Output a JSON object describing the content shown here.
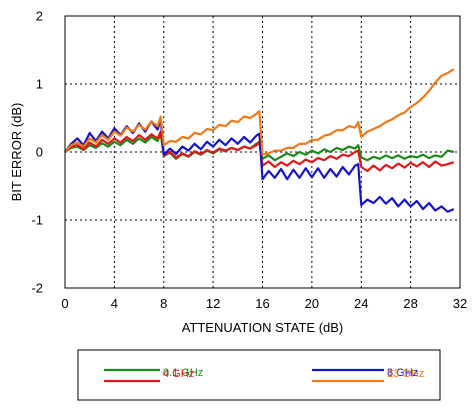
{
  "chart_data": {
    "type": "line",
    "title": "",
    "xlabel": "ATTENUATION STATE (dB)",
    "ylabel": "BIT ERROR (dB)",
    "xlim": [
      0,
      32
    ],
    "ylim": [
      -2,
      2
    ],
    "x_ticks": [
      0,
      4,
      8,
      12,
      16,
      20,
      24,
      28,
      32
    ],
    "y_ticks": [
      -2,
      -1,
      0,
      1,
      2
    ],
    "x_tick_labels": [
      "0",
      "4",
      "8",
      "12",
      "16",
      "20",
      "24",
      "28",
      "32"
    ],
    "y_tick_labels": [
      "-2",
      "-1",
      "0",
      "1",
      "2"
    ],
    "grid": "dotted",
    "legend_position": "bottom",
    "x": [
      0,
      0.5,
      1,
      1.5,
      2,
      2.5,
      3,
      3.5,
      4,
      4.5,
      5,
      5.5,
      6,
      6.5,
      7,
      7.5,
      7.75,
      8,
      8.5,
      9,
      9.5,
      10,
      10.5,
      11,
      11.5,
      12,
      12.5,
      13,
      13.5,
      14,
      14.5,
      15,
      15.5,
      15.75,
      16,
      16.5,
      17,
      17.5,
      18,
      18.5,
      19,
      19.5,
      20,
      20.5,
      21,
      21.5,
      22,
      22.5,
      23,
      23.5,
      23.75,
      24,
      24.5,
      25,
      25.5,
      26,
      26.5,
      27,
      27.5,
      28,
      28.5,
      29,
      29.5,
      30,
      30.5,
      31,
      31.5
    ],
    "series": [
      {
        "name": "0.1 GHz",
        "color": "#1a8a1a",
        "values": [
          0,
          0.06,
          0.08,
          0.03,
          0.1,
          0.06,
          0.13,
          0.08,
          0.15,
          0.1,
          0.18,
          0.12,
          0.2,
          0.14,
          0.22,
          0.16,
          0.27,
          -0.06,
          -0.01,
          -0.1,
          -0.03,
          -0.07,
          0,
          -0.04,
          0.02,
          -0.02,
          0.04,
          0.01,
          0.06,
          0.03,
          0.08,
          0.05,
          0.12,
          0.15,
          -0.1,
          -0.05,
          -0.12,
          -0.07,
          -0.02,
          -0.06,
          0,
          -0.04,
          0.02,
          -0.02,
          0.04,
          0,
          0.06,
          0.03,
          0.08,
          0.05,
          0.1,
          -0.08,
          -0.12,
          -0.07,
          -0.1,
          -0.05,
          -0.09,
          -0.05,
          -0.1,
          -0.06,
          -0.08,
          -0.04,
          -0.09,
          -0.05,
          -0.07,
          0.02,
          0
        ]
      },
      {
        "name": "4 GHz",
        "color": "#e01818",
        "values": [
          0,
          0.08,
          0.1,
          0.04,
          0.14,
          0.08,
          0.18,
          0.12,
          0.2,
          0.14,
          0.22,
          0.16,
          0.25,
          0.18,
          0.26,
          0.2,
          0.3,
          -0.05,
          0,
          -0.08,
          -0.02,
          -0.06,
          0.01,
          -0.03,
          0.03,
          -0.01,
          0.05,
          0.02,
          0.06,
          0.03,
          0.08,
          0.05,
          0.1,
          0.14,
          -0.2,
          -0.14,
          -0.22,
          -0.15,
          -0.2,
          -0.13,
          -0.18,
          -0.11,
          -0.15,
          -0.09,
          -0.12,
          -0.06,
          -0.1,
          -0.04,
          -0.06,
          0,
          0.02,
          -0.22,
          -0.28,
          -0.2,
          -0.27,
          -0.19,
          -0.24,
          -0.17,
          -0.23,
          -0.16,
          -0.21,
          -0.15,
          -0.22,
          -0.14,
          -0.2,
          -0.18,
          -0.15
        ]
      },
      {
        "name": "8 GHz",
        "color": "#1414c8",
        "values": [
          0,
          0.12,
          0.2,
          0.1,
          0.28,
          0.16,
          0.3,
          0.2,
          0.35,
          0.25,
          0.38,
          0.28,
          0.42,
          0.3,
          0.45,
          0.33,
          0.48,
          -0.04,
          0.05,
          -0.03,
          0.08,
          0.02,
          0.12,
          0.04,
          0.15,
          0.08,
          0.18,
          0.1,
          0.2,
          0.12,
          0.22,
          0.14,
          0.24,
          0.27,
          -0.4,
          -0.28,
          -0.38,
          -0.25,
          -0.4,
          -0.26,
          -0.38,
          -0.24,
          -0.37,
          -0.24,
          -0.38,
          -0.25,
          -0.36,
          -0.22,
          -0.33,
          -0.2,
          -0.18,
          -0.78,
          -0.7,
          -0.75,
          -0.66,
          -0.76,
          -0.68,
          -0.8,
          -0.7,
          -0.8,
          -0.72,
          -0.84,
          -0.75,
          -0.86,
          -0.8,
          -0.88,
          -0.84
        ]
      },
      {
        "name": "13 GHz",
        "color": "#f07818",
        "values": [
          0,
          0.1,
          0.14,
          0.08,
          0.2,
          0.14,
          0.25,
          0.18,
          0.3,
          0.24,
          0.36,
          0.3,
          0.4,
          0.33,
          0.45,
          0.38,
          0.52,
          0.1,
          0.16,
          0.15,
          0.22,
          0.2,
          0.28,
          0.26,
          0.34,
          0.32,
          0.4,
          0.38,
          0.46,
          0.44,
          0.52,
          0.5,
          0.56,
          0.6,
          -0.04,
          -0.02,
          0.02,
          0.02,
          0.06,
          0.06,
          0.12,
          0.12,
          0.18,
          0.18,
          0.24,
          0.26,
          0.32,
          0.32,
          0.38,
          0.36,
          0.44,
          0.22,
          0.3,
          0.34,
          0.38,
          0.44,
          0.48,
          0.54,
          0.58,
          0.66,
          0.72,
          0.8,
          0.9,
          1.02,
          1.12,
          1.16,
          1.22
        ]
      }
    ],
    "legend": [
      {
        "name": "0.1 GHz",
        "color": "#1a8a1a"
      },
      {
        "name": "8 GHz",
        "color": "#1414c8"
      },
      {
        "name": "4 GHz",
        "color": "#e01818"
      },
      {
        "name": "13 GHz",
        "color": "#f07818"
      }
    ]
  }
}
